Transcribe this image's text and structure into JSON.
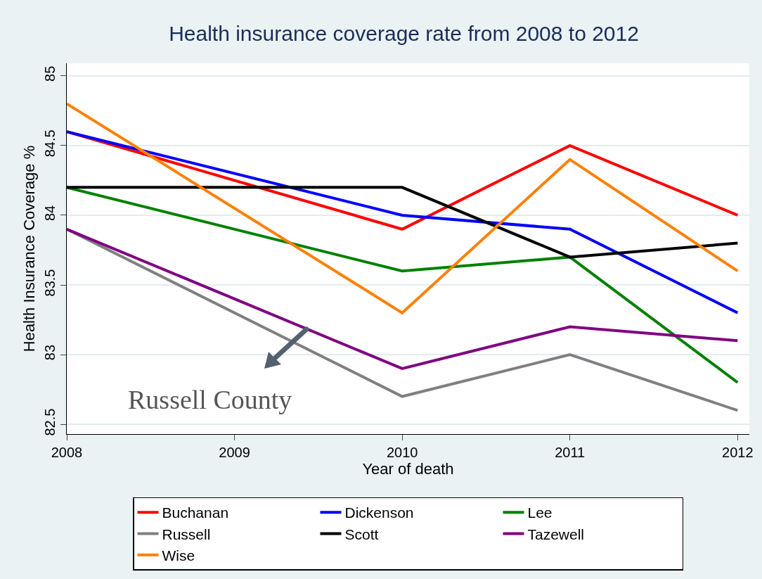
{
  "chart_data": {
    "type": "line",
    "title": "Health insurance coverage rate from 2008 to 2012",
    "xlabel": "Year of death",
    "ylabel": "Health Insurance Coverage %",
    "xlim": [
      2008,
      2012.07
    ],
    "xticks": [
      2008,
      2009,
      2010,
      2011,
      2012
    ],
    "ylim": [
      82.43,
      85.09
    ],
    "yticks": [
      82.5,
      83,
      83.5,
      84,
      84.5,
      85
    ],
    "grid": "y",
    "legend": "bottom",
    "marker": "none",
    "line_style": "solid",
    "series": [
      {
        "name": "Buchanan",
        "color": "#ff0000",
        "x": [
          2008,
          2010,
          2011,
          2012
        ],
        "values": [
          84.6,
          83.9,
          84.5,
          84.0
        ]
      },
      {
        "name": "Dickenson",
        "color": "#0000ff",
        "x": [
          2008,
          2010,
          2011,
          2012
        ],
        "values": [
          84.6,
          84.0,
          83.9,
          83.3
        ]
      },
      {
        "name": "Lee",
        "color": "#008000",
        "x": [
          2008,
          2010,
          2011,
          2012
        ],
        "values": [
          84.2,
          83.6,
          83.7,
          82.8
        ]
      },
      {
        "name": "Russell",
        "color": "#808080",
        "x": [
          2008,
          2010,
          2011,
          2012
        ],
        "values": [
          83.9,
          82.7,
          83.0,
          82.6
        ]
      },
      {
        "name": "Scott",
        "color": "#000000",
        "x": [
          2008,
          2010,
          2011,
          2012
        ],
        "values": [
          84.2,
          84.2,
          83.7,
          83.8
        ]
      },
      {
        "name": "Tazewell",
        "color": "#800080",
        "x": [
          2008,
          2010,
          2011,
          2012
        ],
        "values": [
          83.9,
          82.9,
          83.2,
          83.1
        ]
      },
      {
        "name": "Wise",
        "color": "#ff8000",
        "x": [
          2008,
          2010,
          2011,
          2012
        ],
        "values": [
          84.8,
          83.3,
          84.4,
          83.6
        ]
      }
    ],
    "annotations": [
      "Russell County"
    ]
  }
}
